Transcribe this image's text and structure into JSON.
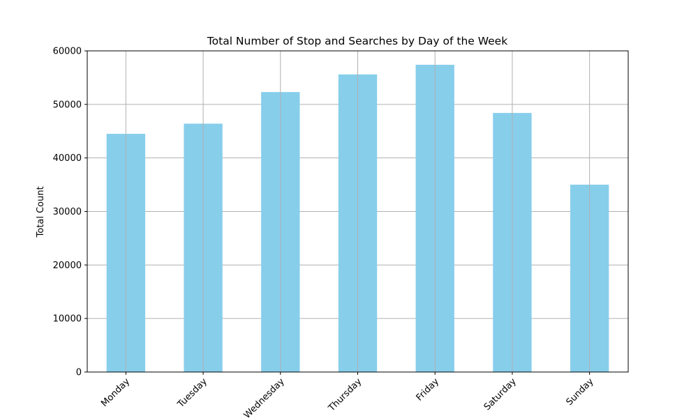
{
  "chart_data": {
    "type": "bar",
    "title": "Total Number of Stop and Searches by Day of the Week",
    "xlabel": "",
    "ylabel": "Total Count",
    "categories": [
      "Monday",
      "Tuesday",
      "Wednesday",
      "Thursday",
      "Friday",
      "Saturday",
      "Sunday"
    ],
    "values": [
      44500,
      46400,
      52300,
      55600,
      57400,
      48400,
      35000
    ],
    "ylim": [
      0,
      60000
    ],
    "yticks": [
      0,
      10000,
      20000,
      30000,
      40000,
      50000,
      60000
    ],
    "grid": true,
    "legend": "none",
    "bar_color": "#87ceeb",
    "grid_color": "#b0b0b0"
  }
}
